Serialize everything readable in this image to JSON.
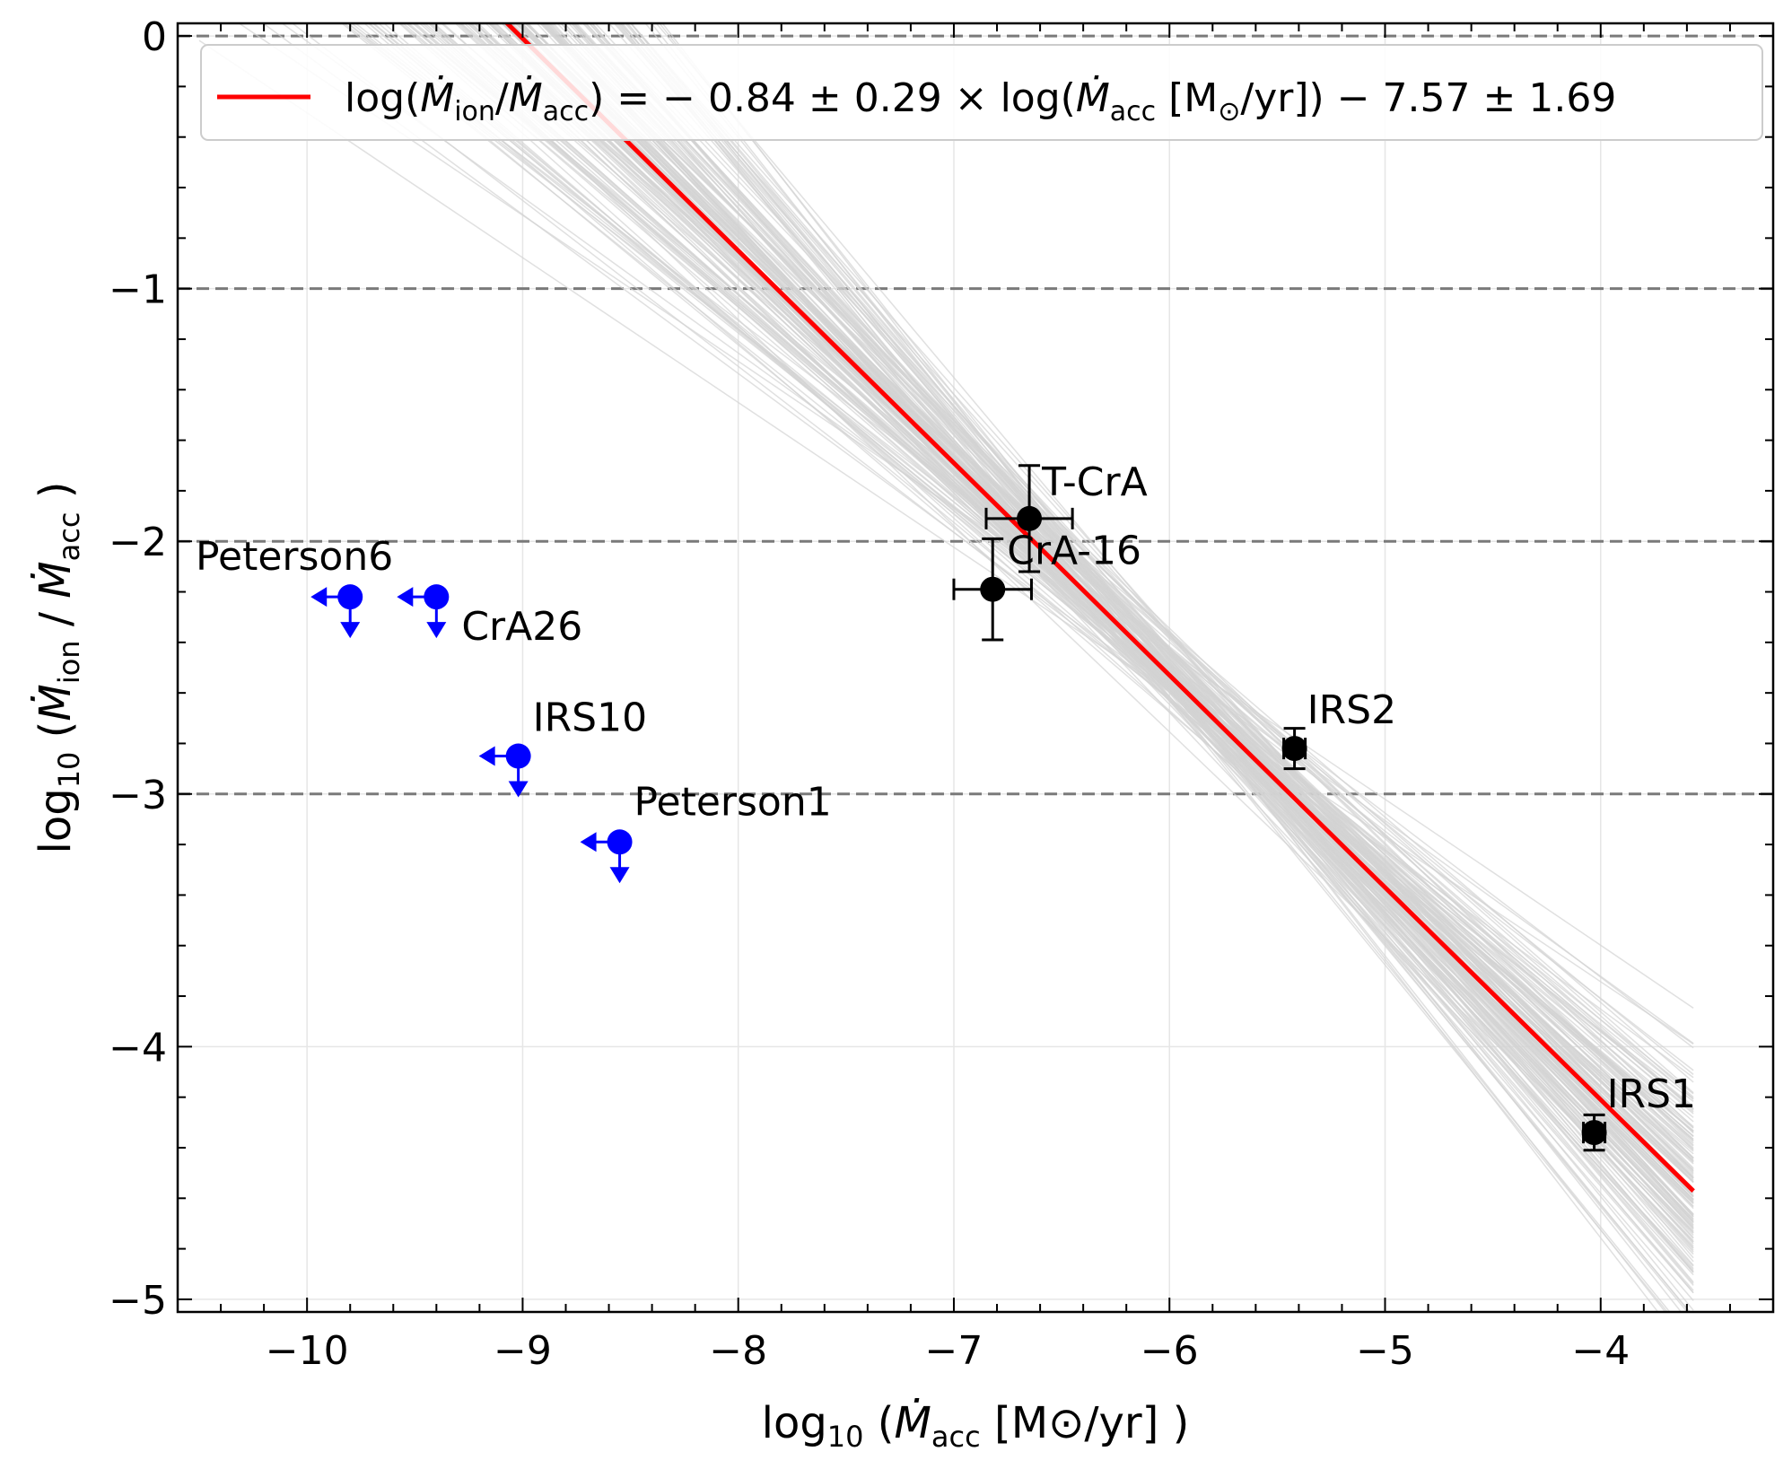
{
  "chart_data": {
    "type": "scatter",
    "title": "",
    "xlabel": "log10 ( Ṁacc [M⊙/yr] )",
    "ylabel": "log10 ( Ṁion / Ṁacc )",
    "xlabel_parts": {
      "pre": "log",
      "sub": "10",
      "mid": " (",
      "var": "Ṁ",
      "var_sub": "acc",
      "post": " [M⊙/yr] )"
    },
    "ylabel_parts": {
      "pre": "log",
      "sub": "10",
      "mid": " (",
      "var1": "Ṁ",
      "var1_sub": "ion",
      "slash": " / ",
      "var2": "Ṁ",
      "var2_sub": "acc",
      "post": " )"
    },
    "xlim": [
      -10.6,
      -3.2
    ],
    "ylim": [
      -5.05,
      0.05
    ],
    "xticks": [
      -10,
      -9,
      -8,
      -7,
      -6,
      -5,
      -4
    ],
    "xtick_labels": [
      "−10",
      "−9",
      "−8",
      "−7",
      "−6",
      "−5",
      "−4"
    ],
    "yticks": [
      0,
      -1,
      -2,
      -3,
      -4,
      -5
    ],
    "ytick_labels": [
      "0",
      "−1",
      "−2",
      "−3",
      "−4",
      "−5"
    ],
    "hlines": [
      0,
      -1,
      -2,
      -3
    ],
    "grid": true,
    "legend": {
      "position": "top",
      "label": "log(Ṁion/Ṁacc) = −0.84 ± 0.29 × log(Ṁacc [M⊙/yr]) − 7.57 ± 1.69",
      "label_parts": {
        "a": "log(",
        "b": "Ṁ",
        "b_sub": "ion",
        "c": "/",
        "d": "Ṁ",
        "d_sub": "acc",
        "e": ") = − 0.84 ± 0.29 × log(",
        "f": "Ṁ",
        "f_sub": "acc",
        "g": " [M",
        "g_sub": "⊙",
        "h": "/yr]) − 7.57 ± 1.69"
      }
    },
    "fit": {
      "slope": -0.84,
      "intercept": -7.57,
      "x_range": [
        -9.12,
        -3.57
      ],
      "color": "#ff0000"
    },
    "fit_samples_color": "#d3d3d3",
    "detections": [
      {
        "name": "T-CrA",
        "x": -6.65,
        "y": -1.91,
        "xerr": 0.2,
        "yerr": 0.21
      },
      {
        "name": "CrA-16",
        "x": -6.82,
        "y": -2.19,
        "xerr": 0.18,
        "yerr": 0.2
      },
      {
        "name": "IRS2",
        "x": -5.42,
        "y": -2.82,
        "xerr": 0.05,
        "yerr": 0.08
      },
      {
        "name": "IRS1",
        "x": -4.03,
        "y": -4.34,
        "xerr": 0.05,
        "yerr": 0.07
      }
    ],
    "upper_limits": [
      {
        "name": "Peterson6",
        "x": -9.8,
        "y": -2.22
      },
      {
        "name": "CrA26",
        "x": -9.4,
        "y": -2.22
      },
      {
        "name": "IRS10",
        "x": -9.02,
        "y": -2.85
      },
      {
        "name": "Peterson1",
        "x": -8.55,
        "y": -3.19
      }
    ],
    "detection_color": "#000000",
    "limit_color": "#0000ff"
  }
}
